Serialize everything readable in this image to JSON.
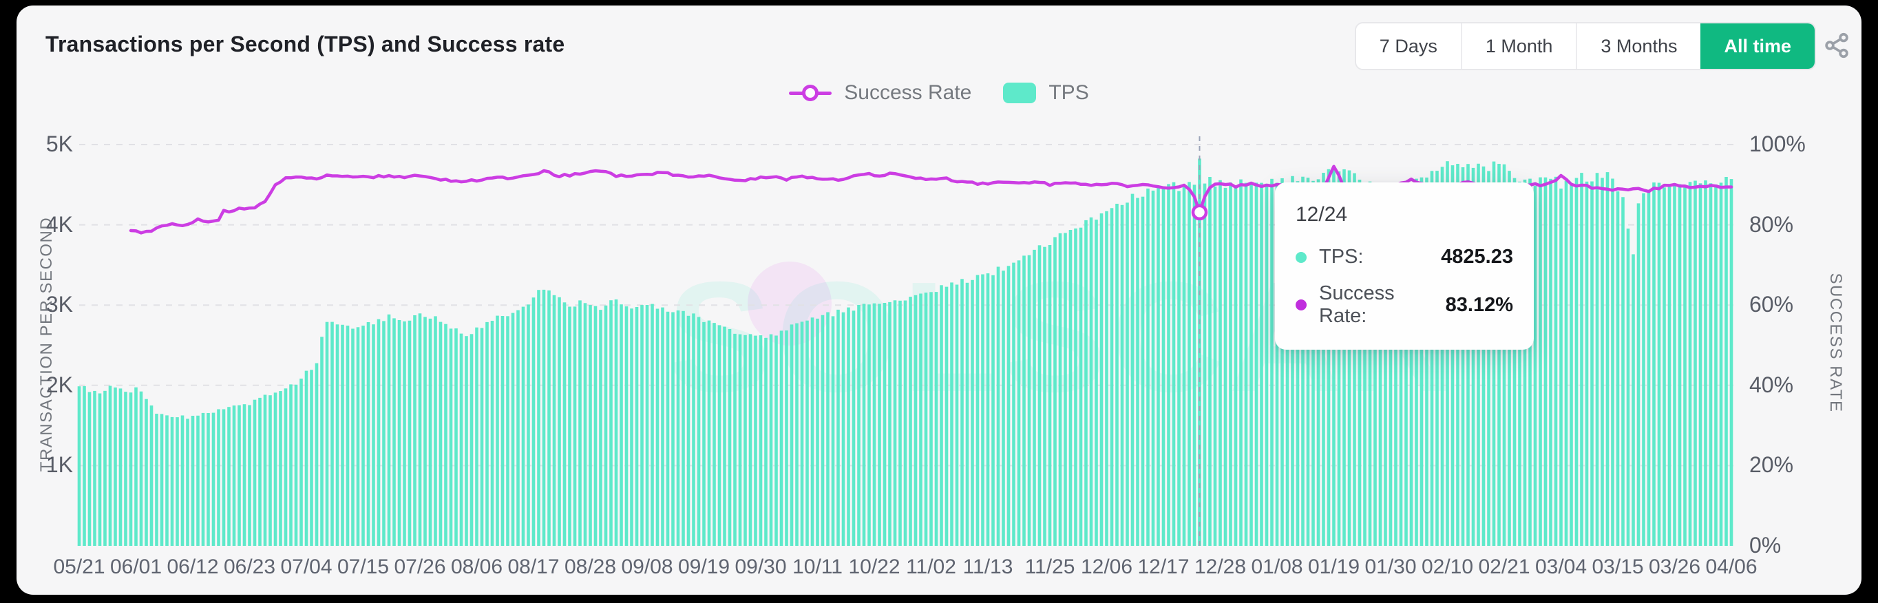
{
  "header": {
    "title": "Transactions per Second (TPS) and Success rate",
    "ranges": [
      "7 Days",
      "1 Month",
      "3 Months",
      "All time"
    ],
    "active_range": "All time"
  },
  "legend": {
    "success": "Success Rate",
    "tps": "TPS"
  },
  "watermark": "SOLSCAN",
  "colors": {
    "teal": "#5EE9CA",
    "magenta": "#CC3DE3",
    "active_button_green": "#10B981",
    "grid": "#E1E1E5",
    "hover_line": "#9AA3B8",
    "card_bg": "#F6F6F7"
  },
  "tooltip": {
    "date": "12/24",
    "tps_label": "TPS:",
    "tps_value": "4825.23",
    "sr_label": "Success Rate:",
    "sr_value": "83.12%"
  },
  "chart_data": {
    "type": "combo",
    "title": "Transactions per Second (TPS) and Success rate",
    "legend_position": "top-center",
    "grid": true,
    "days": 320,
    "x_tick_days": [
      0,
      11,
      22,
      33,
      44,
      55,
      66,
      77,
      88,
      99,
      110,
      121,
      132,
      143,
      154,
      165,
      176,
      188,
      199,
      210,
      221,
      232,
      243,
      254,
      265,
      276,
      287,
      298,
      309,
      320
    ],
    "x_tick_labels": [
      "05/21",
      "06/01",
      "06/12",
      "06/23",
      "07/04",
      "07/15",
      "07/26",
      "08/06",
      "08/17",
      "08/28",
      "09/08",
      "09/19",
      "09/30",
      "10/11",
      "10/22",
      "11/02",
      "11/13",
      "11/25",
      "12/06",
      "12/17",
      "12/28",
      "01/08",
      "01/19",
      "01/30",
      "02/10",
      "02/21",
      "03/04",
      "03/15",
      "03/26",
      "04/06"
    ],
    "left_axis": {
      "title": "TRANSACTION PER SECOND",
      "ticks": [
        "5K",
        "4K",
        "3K",
        "2K",
        "1K"
      ],
      "tick_values": [
        5000,
        4000,
        3000,
        2000,
        1000
      ],
      "min": 0,
      "max": 5000
    },
    "right_axis": {
      "title": "SUCCESS RATE",
      "ticks": [
        "100%",
        "80%",
        "60%",
        "40%",
        "20%",
        "0%"
      ],
      "tick_values": [
        100,
        80,
        60,
        40,
        20,
        0
      ],
      "min": 0,
      "max": 100
    },
    "hover": {
      "day": 217,
      "date": "12/24",
      "tps": 4825.23,
      "success_rate": 83.12
    },
    "bar_jitter_pct": 1.3,
    "line_jitter_pp": 0.3,
    "series": [
      {
        "name": "TPS",
        "type": "bar",
        "axis": "left",
        "color": "#5EE9CA",
        "keypoints": [
          [
            0,
            2000
          ],
          [
            2,
            1930
          ],
          [
            4,
            1900
          ],
          [
            6,
            1990
          ],
          [
            8,
            1960
          ],
          [
            10,
            1905
          ],
          [
            11,
            1990
          ],
          [
            13,
            1840
          ],
          [
            15,
            1660
          ],
          [
            18,
            1615
          ],
          [
            21,
            1600
          ],
          [
            24,
            1645
          ],
          [
            27,
            1690
          ],
          [
            30,
            1735
          ],
          [
            33,
            1775
          ],
          [
            36,
            1860
          ],
          [
            39,
            1945
          ],
          [
            42,
            2030
          ],
          [
            44,
            2160
          ],
          [
            46,
            2280
          ],
          [
            47,
            2620
          ],
          [
            48,
            2820
          ],
          [
            51,
            2780
          ],
          [
            54,
            2720
          ],
          [
            57,
            2790
          ],
          [
            60,
            2850
          ],
          [
            63,
            2820
          ],
          [
            66,
            2865
          ],
          [
            69,
            2830
          ],
          [
            72,
            2740
          ],
          [
            75,
            2620
          ],
          [
            78,
            2750
          ],
          [
            81,
            2860
          ],
          [
            84,
            2910
          ],
          [
            87,
            2990
          ],
          [
            90,
            3230
          ],
          [
            92,
            3120
          ],
          [
            95,
            3010
          ],
          [
            98,
            3030
          ],
          [
            101,
            2960
          ],
          [
            104,
            3090
          ],
          [
            107,
            2950
          ],
          [
            110,
            2990
          ],
          [
            113,
            2960
          ],
          [
            116,
            2915
          ],
          [
            119,
            2870
          ],
          [
            122,
            2790
          ],
          [
            125,
            2725
          ],
          [
            128,
            2650
          ],
          [
            131,
            2590
          ],
          [
            134,
            2625
          ],
          [
            137,
            2700
          ],
          [
            140,
            2770
          ],
          [
            143,
            2835
          ],
          [
            146,
            2895
          ],
          [
            149,
            2950
          ],
          [
            152,
            2990
          ],
          [
            155,
            3025
          ],
          [
            158,
            3060
          ],
          [
            161,
            3100
          ],
          [
            164,
            3160
          ],
          [
            167,
            3215
          ],
          [
            170,
            3270
          ],
          [
            173,
            3330
          ],
          [
            176,
            3390
          ],
          [
            179,
            3460
          ],
          [
            182,
            3560
          ],
          [
            185,
            3670
          ],
          [
            188,
            3790
          ],
          [
            191,
            3900
          ],
          [
            194,
            4000
          ],
          [
            197,
            4110
          ],
          [
            200,
            4230
          ],
          [
            203,
            4310
          ],
          [
            206,
            4380
          ],
          [
            209,
            4430
          ],
          [
            212,
            4480
          ],
          [
            214,
            4430
          ],
          [
            216,
            4520
          ],
          [
            217,
            4825.23
          ],
          [
            218,
            4560
          ],
          [
            220,
            4520
          ],
          [
            223,
            4500
          ],
          [
            226,
            4530
          ],
          [
            229,
            4555
          ],
          [
            232,
            4510
          ],
          [
            235,
            4560
          ],
          [
            238,
            4590
          ],
          [
            241,
            4640
          ],
          [
            243,
            4665
          ],
          [
            245,
            4685
          ],
          [
            248,
            4600
          ],
          [
            251,
            4480
          ],
          [
            253,
            4400
          ],
          [
            255,
            4360
          ],
          [
            257,
            4450
          ],
          [
            259,
            4530
          ],
          [
            261,
            4620
          ],
          [
            263,
            4700
          ],
          [
            265,
            4750
          ],
          [
            267,
            4800
          ],
          [
            269,
            4730
          ],
          [
            271,
            4790
          ],
          [
            273,
            4700
          ],
          [
            275,
            4760
          ],
          [
            277,
            4650
          ],
          [
            279,
            4580
          ],
          [
            281,
            4520
          ],
          [
            283,
            4545
          ],
          [
            285,
            4580
          ],
          [
            287,
            4500
          ],
          [
            289,
            4560
          ],
          [
            291,
            4620
          ],
          [
            293,
            4540
          ],
          [
            295,
            4640
          ],
          [
            297,
            4580
          ],
          [
            299,
            4300
          ],
          [
            301,
            3620
          ],
          [
            302,
            4240
          ],
          [
            304,
            4450
          ],
          [
            306,
            4520
          ],
          [
            308,
            4465
          ],
          [
            310,
            4485
          ],
          [
            312,
            4530
          ],
          [
            314,
            4560
          ],
          [
            316,
            4490
          ],
          [
            318,
            4545
          ],
          [
            320,
            4590
          ]
        ]
      },
      {
        "name": "Success Rate",
        "type": "line",
        "axis": "right",
        "color": "#CC3DE3",
        "starts_day": 10,
        "keypoints": [
          [
            10,
            78.8
          ],
          [
            12,
            78.0
          ],
          [
            14,
            78.5
          ],
          [
            16,
            79.7
          ],
          [
            18,
            80.2
          ],
          [
            20,
            79.6
          ],
          [
            23,
            81.5
          ],
          [
            25,
            80.5
          ],
          [
            27,
            81.0
          ],
          [
            28,
            83.3
          ],
          [
            31,
            83.9
          ],
          [
            34,
            84.5
          ],
          [
            36,
            86.0
          ],
          [
            38,
            90.0
          ],
          [
            40,
            91.5
          ],
          [
            43,
            91.8
          ],
          [
            46,
            91.4
          ],
          [
            48,
            92.6
          ],
          [
            51,
            92.0
          ],
          [
            54,
            91.7
          ],
          [
            57,
            92.0
          ],
          [
            60,
            92.3
          ],
          [
            63,
            91.8
          ],
          [
            66,
            92.2
          ],
          [
            69,
            91.5
          ],
          [
            72,
            91.0
          ],
          [
            75,
            90.7
          ],
          [
            78,
            91.4
          ],
          [
            81,
            91.9
          ],
          [
            84,
            91.4
          ],
          [
            87,
            92.3
          ],
          [
            90,
            93.3
          ],
          [
            93,
            92.2
          ],
          [
            96,
            92.5
          ],
          [
            99,
            93.1
          ],
          [
            101,
            93.4
          ],
          [
            104,
            92.3
          ],
          [
            107,
            92.0
          ],
          [
            110,
            92.7
          ],
          [
            113,
            93.0
          ],
          [
            116,
            92.4
          ],
          [
            119,
            91.9
          ],
          [
            122,
            92.3
          ],
          [
            125,
            91.6
          ],
          [
            128,
            91.1
          ],
          [
            131,
            91.5
          ],
          [
            134,
            92.0
          ],
          [
            137,
            91.3
          ],
          [
            140,
            92.2
          ],
          [
            143,
            91.6
          ],
          [
            146,
            91.2
          ],
          [
            149,
            91.8
          ],
          [
            152,
            92.8
          ],
          [
            155,
            92.3
          ],
          [
            158,
            92.9
          ],
          [
            161,
            91.8
          ],
          [
            164,
            91.3
          ],
          [
            167,
            91.7
          ],
          [
            170,
            91.0
          ],
          [
            173,
            90.5
          ],
          [
            176,
            90.1
          ],
          [
            179,
            90.7
          ],
          [
            182,
            90.3
          ],
          [
            185,
            90.8
          ],
          [
            188,
            90.1
          ],
          [
            191,
            90.7
          ],
          [
            194,
            90.2
          ],
          [
            197,
            90.0
          ],
          [
            200,
            90.5
          ],
          [
            203,
            89.8
          ],
          [
            206,
            90.0
          ],
          [
            209,
            89.5
          ],
          [
            212,
            89.3
          ],
          [
            214,
            89.7
          ],
          [
            215,
            89.0
          ],
          [
            216,
            87.2
          ],
          [
            217,
            83.12
          ],
          [
            218,
            87.2
          ],
          [
            219,
            89.5
          ],
          [
            221,
            90.2
          ],
          [
            224,
            89.7
          ],
          [
            227,
            90.1
          ],
          [
            230,
            89.6
          ],
          [
            233,
            89.9
          ],
          [
            236,
            89.3
          ],
          [
            239,
            89.7
          ],
          [
            241,
            89.2
          ],
          [
            242,
            91.5
          ],
          [
            243,
            94.8
          ],
          [
            244,
            92.0
          ],
          [
            245,
            89.2
          ],
          [
            247,
            88.7
          ],
          [
            250,
            89.6
          ],
          [
            253,
            88.9
          ],
          [
            256,
            90.3
          ],
          [
            258,
            91.3
          ],
          [
            260,
            90.1
          ],
          [
            263,
            89.3
          ],
          [
            266,
            89.9
          ],
          [
            269,
            90.5
          ],
          [
            272,
            89.3
          ],
          [
            275,
            89.9
          ],
          [
            278,
            89.5
          ],
          [
            281,
            90.1
          ],
          [
            284,
            89.9
          ],
          [
            286,
            91.0
          ],
          [
            287,
            92.6
          ],
          [
            289,
            89.9
          ],
          [
            292,
            89.6
          ],
          [
            295,
            89.0
          ],
          [
            298,
            88.7
          ],
          [
            301,
            89.1
          ],
          [
            304,
            88.6
          ],
          [
            307,
            89.6
          ],
          [
            310,
            89.9
          ],
          [
            313,
            89.2
          ],
          [
            316,
            89.7
          ],
          [
            320,
            89.4
          ]
        ]
      }
    ]
  }
}
